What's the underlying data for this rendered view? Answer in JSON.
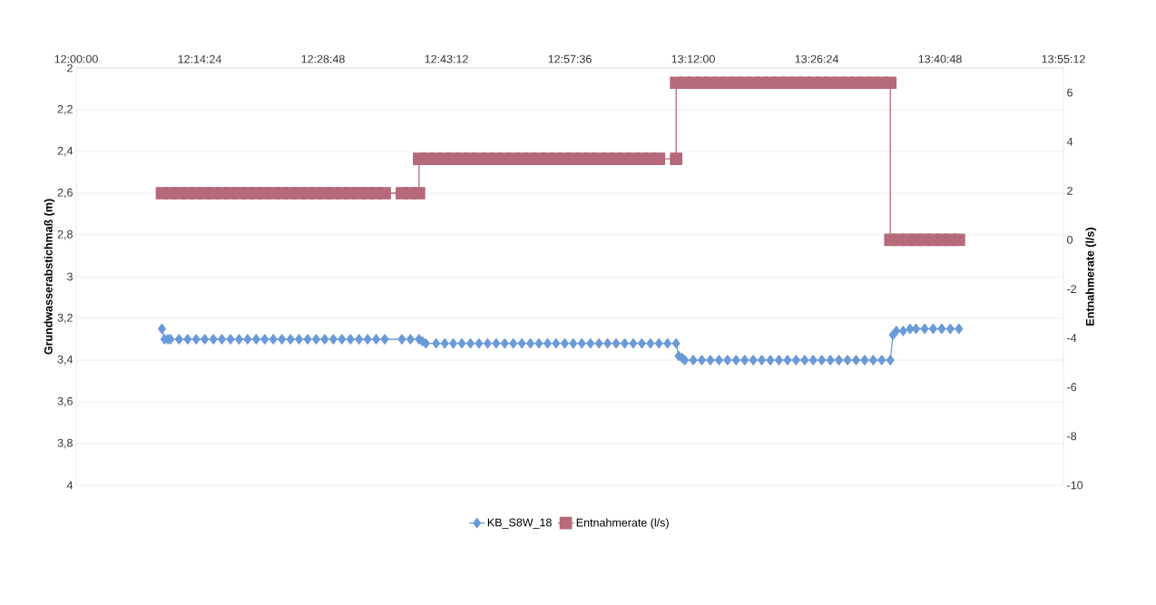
{
  "chart_data": {
    "type": "line",
    "ylabel": "Grundwasserabstichmaß (m)",
    "y2label": "Entnahmerate (l/s)",
    "xlim": [
      12.0,
      13.92
    ],
    "xticks": [
      {
        "value": 12.0,
        "label": "12:00:00"
      },
      {
        "value": 12.24,
        "label": "12:14:24"
      },
      {
        "value": 12.48,
        "label": "12:28:48"
      },
      {
        "value": 12.72,
        "label": "12:43:12"
      },
      {
        "value": 12.96,
        "label": "12:57:36"
      },
      {
        "value": 13.2,
        "label": "13:12:00"
      },
      {
        "value": 13.44,
        "label": "13:26:24"
      },
      {
        "value": 13.68,
        "label": "13:40:48"
      },
      {
        "value": 13.92,
        "label": "13:55:12"
      }
    ],
    "ylim": [
      4,
      2
    ],
    "yticks": [
      2,
      {
        "value": 2.2,
        "label": "2,2"
      },
      {
        "value": 2.4,
        "label": "2,4"
      },
      {
        "value": 2.6,
        "label": "2,6"
      },
      {
        "value": 2.8,
        "label": "2,8"
      },
      3,
      {
        "value": 3.2,
        "label": "3,2"
      },
      {
        "value": 3.4,
        "label": "3,4"
      },
      {
        "value": 3.6,
        "label": "3,6"
      },
      {
        "value": 3.8,
        "label": "3,8"
      },
      4
    ],
    "y2lim": [
      -10,
      7
    ],
    "y2ticks": [
      -10,
      -8,
      -6,
      -4,
      -2,
      0,
      2,
      4,
      6
    ],
    "grid": "y",
    "legend": "bottom",
    "series": [
      {
        "name": "KB_S8W_18",
        "color": "#6a9ad9",
        "marker": "diamond",
        "x": [
          12.1667,
          12.1717,
          12.1783,
          12.1833,
          12.2,
          12.2167,
          12.2333,
          12.25,
          12.2667,
          12.2833,
          12.3,
          12.3167,
          12.3333,
          12.35,
          12.3667,
          12.3833,
          12.4,
          12.4167,
          12.4333,
          12.45,
          12.4667,
          12.4833,
          12.5,
          12.5167,
          12.5333,
          12.55,
          12.5667,
          12.5833,
          12.6,
          12.6333,
          12.65,
          12.6667,
          12.6733,
          12.68,
          12.7,
          12.7167,
          12.7333,
          12.75,
          12.7667,
          12.7833,
          12.8,
          12.8167,
          12.8333,
          12.85,
          12.8667,
          12.8833,
          12.9,
          12.9167,
          12.9333,
          12.95,
          12.9667,
          12.9833,
          13.0,
          13.0167,
          13.0333,
          13.05,
          13.0667,
          13.0833,
          13.1,
          13.1167,
          13.1333,
          13.15,
          13.1667,
          13.1717,
          13.1783,
          13.1833,
          13.2,
          13.2167,
          13.2333,
          13.25,
          13.2667,
          13.2833,
          13.3,
          13.3167,
          13.3333,
          13.35,
          13.3667,
          13.3833,
          13.4,
          13.4167,
          13.4333,
          13.45,
          13.4667,
          13.4833,
          13.5,
          13.5167,
          13.5333,
          13.55,
          13.5667,
          13.5833,
          13.5883,
          13.595,
          13.6083,
          13.6217,
          13.6333,
          13.65,
          13.6667,
          13.6833,
          13.7,
          13.7167
        ],
        "values": [
          3.25,
          3.3,
          3.3,
          3.3,
          3.3,
          3.3,
          3.3,
          3.3,
          3.3,
          3.3,
          3.3,
          3.3,
          3.3,
          3.3,
          3.3,
          3.3,
          3.3,
          3.3,
          3.3,
          3.3,
          3.3,
          3.3,
          3.3,
          3.3,
          3.3,
          3.3,
          3.3,
          3.3,
          3.3,
          3.3,
          3.3,
          3.3,
          3.31,
          3.32,
          3.32,
          3.32,
          3.32,
          3.32,
          3.32,
          3.32,
          3.32,
          3.32,
          3.32,
          3.32,
          3.32,
          3.32,
          3.32,
          3.32,
          3.32,
          3.32,
          3.32,
          3.32,
          3.32,
          3.32,
          3.32,
          3.32,
          3.32,
          3.32,
          3.32,
          3.32,
          3.32,
          3.32,
          3.32,
          3.38,
          3.39,
          3.4,
          3.4,
          3.4,
          3.4,
          3.4,
          3.4,
          3.4,
          3.4,
          3.4,
          3.4,
          3.4,
          3.4,
          3.4,
          3.4,
          3.4,
          3.4,
          3.4,
          3.4,
          3.4,
          3.4,
          3.4,
          3.4,
          3.4,
          3.4,
          3.4,
          3.28,
          3.26,
          3.26,
          3.25,
          3.25,
          3.25,
          3.25,
          3.25,
          3.25,
          3.25
        ]
      },
      {
        "name": "Entnahmerate (l/s)",
        "color": "#b5697a",
        "marker": "square",
        "axis": "y2",
        "x": [
          12.1667,
          12.1833,
          12.2,
          12.2167,
          12.2333,
          12.25,
          12.2667,
          12.2833,
          12.3,
          12.3167,
          12.3333,
          12.35,
          12.3667,
          12.3833,
          12.4,
          12.4167,
          12.4333,
          12.45,
          12.4667,
          12.4833,
          12.5,
          12.5167,
          12.5333,
          12.55,
          12.5667,
          12.5833,
          12.6,
          12.6333,
          12.65,
          12.6667,
          12.6667,
          12.6833,
          12.7,
          12.7167,
          12.7333,
          12.75,
          12.7667,
          12.7833,
          12.8,
          12.8167,
          12.8333,
          12.85,
          12.8667,
          12.8833,
          12.9,
          12.9167,
          12.9333,
          12.95,
          12.9667,
          12.9833,
          13.0,
          13.0167,
          13.0333,
          13.05,
          13.0667,
          13.0833,
          13.1,
          13.1167,
          13.1333,
          13.1667,
          13.1667,
          13.1833,
          13.2,
          13.2167,
          13.2333,
          13.25,
          13.2667,
          13.2833,
          13.3,
          13.3167,
          13.3333,
          13.35,
          13.3667,
          13.3833,
          13.4,
          13.4167,
          13.4333,
          13.45,
          13.4667,
          13.4833,
          13.5,
          13.5167,
          13.5333,
          13.55,
          13.5667,
          13.5833,
          13.5833,
          13.6,
          13.6167,
          13.6333,
          13.65,
          13.6667,
          13.6833,
          13.7,
          13.7167
        ],
        "values": [
          1.9,
          1.9,
          1.9,
          1.9,
          1.9,
          1.9,
          1.9,
          1.9,
          1.9,
          1.9,
          1.9,
          1.9,
          1.9,
          1.9,
          1.9,
          1.9,
          1.9,
          1.9,
          1.9,
          1.9,
          1.9,
          1.9,
          1.9,
          1.9,
          1.9,
          1.9,
          1.9,
          1.9,
          1.9,
          1.9,
          3.3,
          3.3,
          3.3,
          3.3,
          3.3,
          3.3,
          3.3,
          3.3,
          3.3,
          3.3,
          3.3,
          3.3,
          3.3,
          3.3,
          3.3,
          3.3,
          3.3,
          3.3,
          3.3,
          3.3,
          3.3,
          3.3,
          3.3,
          3.3,
          3.3,
          3.3,
          3.3,
          3.3,
          3.3,
          3.3,
          6.4,
          6.4,
          6.4,
          6.4,
          6.4,
          6.4,
          6.4,
          6.4,
          6.4,
          6.4,
          6.4,
          6.4,
          6.4,
          6.4,
          6.4,
          6.4,
          6.4,
          6.4,
          6.4,
          6.4,
          6.4,
          6.4,
          6.4,
          6.4,
          6.4,
          6.4,
          0,
          0,
          0,
          0,
          0,
          0,
          0,
          0,
          0
        ]
      }
    ]
  }
}
